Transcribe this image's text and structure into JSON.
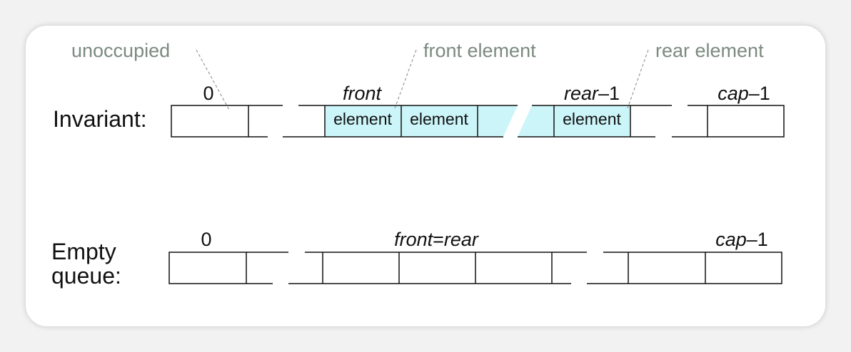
{
  "colors": {
    "occupied_fill": "#ccf5f9",
    "stroke": "#111111",
    "annotation_text": "#7b8a80",
    "leader_line": "#9a9a9a"
  },
  "invariant": {
    "label": "Invariant:",
    "index_zero": "0",
    "index_front": "front",
    "index_rear_var": "rear",
    "index_rear_suffix": "–1",
    "index_cap_var": "cap",
    "index_cap_suffix": "–1",
    "cells": [
      "element",
      "element",
      "element"
    ],
    "annotations": {
      "unoccupied": "unoccupied",
      "front_element": "front element",
      "rear_element": "rear element"
    }
  },
  "empty": {
    "label_line1": "Empty",
    "label_line2": "queue:",
    "index_zero": "0",
    "index_front": "front",
    "index_eq": "=",
    "index_rear": "rear",
    "index_cap_var": "cap",
    "index_cap_suffix": "–1"
  }
}
